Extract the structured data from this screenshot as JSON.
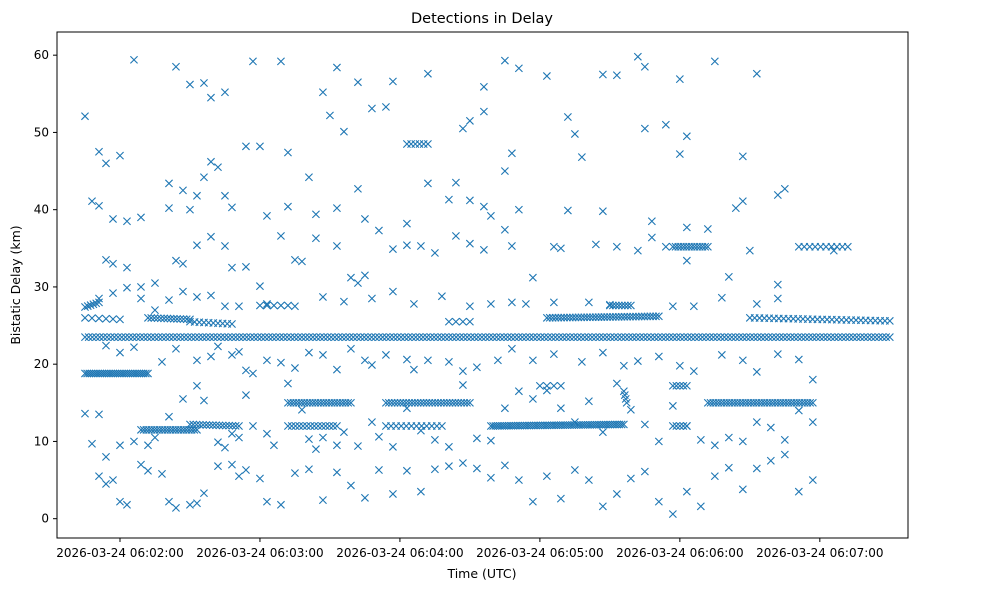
{
  "chart_data": {
    "type": "scatter",
    "title": "Detections in Delay",
    "xlabel": "Time (UTC)",
    "ylabel": "Bistatic Delay (km)",
    "marker": "x",
    "color": "#1f77b4",
    "xlim": [
      -0.45,
      5.63
    ],
    "ylim": [
      -2.5,
      63
    ],
    "x_unit": "minutes after 2026-03-24 06:02:00",
    "x_ticks": [
      {
        "value": 0,
        "label": "2026-03-24 06:02:00"
      },
      {
        "value": 1,
        "label": "2026-03-24 06:03:00"
      },
      {
        "value": 2,
        "label": "2026-03-24 06:04:00"
      },
      {
        "value": 3,
        "label": "2026-03-24 06:05:00"
      },
      {
        "value": 4,
        "label": "2026-03-24 06:06:00"
      },
      {
        "value": 5,
        "label": "2026-03-24 06:07:00"
      }
    ],
    "y_ticks": [
      {
        "value": 0,
        "label": "0"
      },
      {
        "value": 10,
        "label": "10"
      },
      {
        "value": 20,
        "label": "20"
      },
      {
        "value": 30,
        "label": "30"
      },
      {
        "value": 40,
        "label": "40"
      },
      {
        "value": 50,
        "label": "50"
      },
      {
        "value": 60,
        "label": "60"
      }
    ],
    "tracks": [
      {
        "x_start": -0.25,
        "x_end": 5.5,
        "y_start": 23.5,
        "y_end": 23.5,
        "count": 220
      },
      {
        "x_start": -0.25,
        "x_end": 0.2,
        "y_start": 18.8,
        "y_end": 18.8,
        "count": 30
      },
      {
        "x_start": -0.25,
        "x_end": -0.15,
        "y_start": 27.4,
        "y_end": 28.0,
        "count": 6
      },
      {
        "x_start": -0.25,
        "x_end": 0.0,
        "y_start": 26.0,
        "y_end": 25.8,
        "count": 6
      },
      {
        "x_start": 0.2,
        "x_end": 0.5,
        "y_start": 26.0,
        "y_end": 25.8,
        "count": 14
      },
      {
        "x_start": 0.5,
        "x_end": 0.8,
        "y_start": 25.5,
        "y_end": 25.2,
        "count": 10
      },
      {
        "x_start": 1.0,
        "x_end": 1.2,
        "y_start": 27.6,
        "y_end": 27.6,
        "count": 5
      },
      {
        "x_start": 0.15,
        "x_end": 0.55,
        "y_start": 11.5,
        "y_end": 11.5,
        "count": 22
      },
      {
        "x_start": 0.5,
        "x_end": 0.85,
        "y_start": 12.2,
        "y_end": 12.0,
        "count": 16
      },
      {
        "x_start": 1.2,
        "x_end": 1.65,
        "y_start": 15.0,
        "y_end": 15.0,
        "count": 24
      },
      {
        "x_start": 1.2,
        "x_end": 1.55,
        "y_start": 12.0,
        "y_end": 12.0,
        "count": 14
      },
      {
        "x_start": 1.9,
        "x_end": 2.5,
        "y_start": 15.0,
        "y_end": 15.0,
        "count": 30
      },
      {
        "x_start": 1.9,
        "x_end": 2.3,
        "y_start": 12.0,
        "y_end": 12.0,
        "count": 12
      },
      {
        "x_start": 2.05,
        "x_end": 2.2,
        "y_start": 48.5,
        "y_end": 48.5,
        "count": 6
      },
      {
        "x_start": 2.65,
        "x_end": 3.6,
        "y_start": 12.0,
        "y_end": 12.2,
        "count": 60
      },
      {
        "x_start": 3.05,
        "x_end": 3.85,
        "y_start": 26.0,
        "y_end": 26.2,
        "count": 40
      },
      {
        "x_start": 3.5,
        "x_end": 3.65,
        "y_start": 27.6,
        "y_end": 27.6,
        "count": 8
      },
      {
        "x_start": 3.6,
        "x_end": 3.62,
        "y_start": 16.5,
        "y_end": 15.0,
        "count": 4
      },
      {
        "x_start": 3.95,
        "x_end": 4.2,
        "y_start": 35.2,
        "y_end": 35.2,
        "count": 14
      },
      {
        "x_start": 4.2,
        "x_end": 4.95,
        "y_start": 15.0,
        "y_end": 15.0,
        "count": 40
      },
      {
        "x_start": 4.85,
        "x_end": 5.2,
        "y_start": 35.2,
        "y_end": 35.2,
        "count": 10
      },
      {
        "x_start": 4.5,
        "x_end": 5.5,
        "y_start": 26.0,
        "y_end": 25.6,
        "count": 30
      },
      {
        "x_start": 3.95,
        "x_end": 4.05,
        "y_start": 17.2,
        "y_end": 17.2,
        "count": 5
      },
      {
        "x_start": 3.95,
        "x_end": 4.05,
        "y_start": 12.0,
        "y_end": 12.0,
        "count": 5
      },
      {
        "x_start": 2.35,
        "x_end": 2.5,
        "y_start": 25.5,
        "y_end": 25.5,
        "count": 4
      },
      {
        "x_start": 3.0,
        "x_end": 3.15,
        "y_start": 17.2,
        "y_end": 17.2,
        "count": 4
      }
    ],
    "points": [
      [
        -0.25,
        52.1
      ],
      [
        0.1,
        59.4
      ],
      [
        0.4,
        58.5
      ],
      [
        0.5,
        56.2
      ],
      [
        0.6,
        56.4
      ],
      [
        0.65,
        54.5
      ],
      [
        0.75,
        55.2
      ],
      [
        0.95,
        59.2
      ],
      [
        1.15,
        59.2
      ],
      [
        1.55,
        58.4
      ],
      [
        1.7,
        56.5
      ],
      [
        1.95,
        56.6
      ],
      [
        2.2,
        57.6
      ],
      [
        2.6,
        55.9
      ],
      [
        2.75,
        59.3
      ],
      [
        2.85,
        58.3
      ],
      [
        3.05,
        57.3
      ],
      [
        3.45,
        57.5
      ],
      [
        3.55,
        57.4
      ],
      [
        3.7,
        59.8
      ],
      [
        3.75,
        58.5
      ],
      [
        4.25,
        59.2
      ],
      [
        4.55,
        57.6
      ],
      [
        4.0,
        56.9
      ],
      [
        -0.15,
        47.5
      ],
      [
        -0.1,
        46
      ],
      [
        0.0,
        47
      ],
      [
        0.35,
        43.4
      ],
      [
        0.45,
        42.5
      ],
      [
        0.55,
        41.8
      ],
      [
        0.6,
        44.2
      ],
      [
        0.65,
        46.2
      ],
      [
        0.7,
        45.5
      ],
      [
        0.9,
        48.2
      ],
      [
        1.0,
        48.2
      ],
      [
        1.2,
        47.4
      ],
      [
        1.35,
        44.2
      ],
      [
        1.45,
        55.2
      ],
      [
        1.5,
        52.2
      ],
      [
        1.6,
        50.1
      ],
      [
        1.7,
        42.7
      ],
      [
        1.8,
        53.1
      ],
      [
        1.9,
        53.3
      ],
      [
        2.2,
        43.4
      ],
      [
        2.35,
        41.3
      ],
      [
        2.45,
        50.5
      ],
      [
        2.5,
        51.5
      ],
      [
        2.6,
        52.7
      ],
      [
        2.75,
        45
      ],
      [
        2.8,
        47.3
      ],
      [
        3.2,
        52
      ],
      [
        3.25,
        49.8
      ],
      [
        3.3,
        46.8
      ],
      [
        3.75,
        50.5
      ],
      [
        3.9,
        51
      ],
      [
        4.05,
        49.5
      ],
      [
        4.0,
        47.2
      ],
      [
        4.45,
        46.9
      ],
      [
        4.75,
        42.7
      ],
      [
        -0.2,
        41.1
      ],
      [
        -0.15,
        40.5
      ],
      [
        -0.05,
        38.8
      ],
      [
        0.05,
        38.5
      ],
      [
        0.15,
        39
      ],
      [
        0.35,
        40.2
      ],
      [
        0.5,
        40
      ],
      [
        0.75,
        41.8
      ],
      [
        0.8,
        40.3
      ],
      [
        1.05,
        39.2
      ],
      [
        1.2,
        40.4
      ],
      [
        1.4,
        39.4
      ],
      [
        1.55,
        40.2
      ],
      [
        1.75,
        38.8
      ],
      [
        2.05,
        38.2
      ],
      [
        2.4,
        43.5
      ],
      [
        2.5,
        41.2
      ],
      [
        2.6,
        40.4
      ],
      [
        2.65,
        39.2
      ],
      [
        2.85,
        40
      ],
      [
        3.2,
        39.9
      ],
      [
        3.45,
        39.8
      ],
      [
        3.8,
        38.5
      ],
      [
        4.05,
        37.7
      ],
      [
        4.2,
        37.5
      ],
      [
        4.4,
        40.2
      ],
      [
        4.45,
        41.1
      ],
      [
        4.7,
        41.9
      ],
      [
        -0.1,
        33.5
      ],
      [
        -0.05,
        33
      ],
      [
        0.05,
        32.5
      ],
      [
        0.15,
        30
      ],
      [
        0.25,
        30.5
      ],
      [
        0.4,
        33.4
      ],
      [
        0.45,
        33
      ],
      [
        0.55,
        35.4
      ],
      [
        0.65,
        36.5
      ],
      [
        0.75,
        35.3
      ],
      [
        0.8,
        32.5
      ],
      [
        0.9,
        32.6
      ],
      [
        1.0,
        30.1
      ],
      [
        1.15,
        36.6
      ],
      [
        1.25,
        33.5
      ],
      [
        1.3,
        33.3
      ],
      [
        1.4,
        36.3
      ],
      [
        1.55,
        35.3
      ],
      [
        1.65,
        31.2
      ],
      [
        1.75,
        31.5
      ],
      [
        1.85,
        37.3
      ],
      [
        1.95,
        34.9
      ],
      [
        2.05,
        35.4
      ],
      [
        2.15,
        35.3
      ],
      [
        2.25,
        34.4
      ],
      [
        2.4,
        36.6
      ],
      [
        2.5,
        35.6
      ],
      [
        2.6,
        34.8
      ],
      [
        2.75,
        37.4
      ],
      [
        2.8,
        35.3
      ],
      [
        2.95,
        31.2
      ],
      [
        3.1,
        35.2
      ],
      [
        3.15,
        35
      ],
      [
        3.4,
        35.5
      ],
      [
        3.55,
        35.2
      ],
      [
        3.7,
        34.7
      ],
      [
        3.8,
        36.4
      ],
      [
        3.9,
        35.2
      ],
      [
        4.05,
        33.4
      ],
      [
        4.35,
        31.3
      ],
      [
        4.5,
        34.7
      ],
      [
        4.7,
        30.3
      ],
      [
        5.1,
        34.7
      ],
      [
        -0.15,
        28.5
      ],
      [
        -0.05,
        29.2
      ],
      [
        0.05,
        29.9
      ],
      [
        0.15,
        28.5
      ],
      [
        0.25,
        27
      ],
      [
        0.35,
        28.3
      ],
      [
        0.45,
        29.4
      ],
      [
        0.55,
        28.7
      ],
      [
        0.65,
        28.9
      ],
      [
        0.75,
        27.5
      ],
      [
        0.85,
        27.5
      ],
      [
        1.05,
        27.8
      ],
      [
        1.25,
        27.5
      ],
      [
        1.45,
        28.7
      ],
      [
        1.6,
        28.1
      ],
      [
        1.7,
        30.5
      ],
      [
        1.8,
        28.5
      ],
      [
        1.95,
        29.4
      ],
      [
        2.1,
        27.8
      ],
      [
        2.3,
        28.8
      ],
      [
        2.5,
        27.5
      ],
      [
        2.65,
        27.8
      ],
      [
        2.8,
        28
      ],
      [
        2.9,
        27.8
      ],
      [
        3.1,
        28
      ],
      [
        3.35,
        28
      ],
      [
        3.5,
        27.7
      ],
      [
        3.95,
        27.5
      ],
      [
        4.1,
        27.5
      ],
      [
        4.3,
        28.6
      ],
      [
        4.55,
        27.8
      ],
      [
        4.7,
        28.5
      ],
      [
        -0.1,
        22.4
      ],
      [
        0.0,
        21.5
      ],
      [
        0.1,
        22.2
      ],
      [
        0.3,
        20.3
      ],
      [
        0.4,
        22
      ],
      [
        0.55,
        20.5
      ],
      [
        0.65,
        21
      ],
      [
        0.7,
        22.3
      ],
      [
        0.8,
        21.2
      ],
      [
        0.85,
        21.6
      ],
      [
        0.9,
        19.2
      ],
      [
        0.95,
        18.8
      ],
      [
        1.05,
        20.5
      ],
      [
        1.15,
        20.2
      ],
      [
        1.25,
        19.5
      ],
      [
        1.35,
        21.5
      ],
      [
        1.45,
        21.2
      ],
      [
        1.55,
        19.3
      ],
      [
        1.65,
        22
      ],
      [
        1.75,
        20.5
      ],
      [
        1.8,
        19.9
      ],
      [
        1.9,
        21.2
      ],
      [
        2.05,
        20.6
      ],
      [
        2.1,
        19.3
      ],
      [
        2.2,
        20.5
      ],
      [
        2.35,
        20.3
      ],
      [
        2.45,
        19.1
      ],
      [
        2.55,
        19.6
      ],
      [
        2.7,
        20.5
      ],
      [
        2.8,
        22
      ],
      [
        2.95,
        20.5
      ],
      [
        3.1,
        21.3
      ],
      [
        3.3,
        20.3
      ],
      [
        3.45,
        21.5
      ],
      [
        3.6,
        19.8
      ],
      [
        3.7,
        20.4
      ],
      [
        3.85,
        21
      ],
      [
        4.0,
        19.8
      ],
      [
        4.1,
        19.1
      ],
      [
        4.3,
        21.2
      ],
      [
        4.45,
        20.5
      ],
      [
        4.55,
        19
      ],
      [
        4.7,
        21.3
      ],
      [
        4.85,
        20.6
      ],
      [
        4.95,
        18
      ],
      [
        -0.25,
        13.6
      ],
      [
        -0.15,
        13.5
      ],
      [
        -0.2,
        9.7
      ],
      [
        -0.1,
        8
      ],
      [
        0.0,
        9.5
      ],
      [
        0.1,
        10
      ],
      [
        0.2,
        9.5
      ],
      [
        0.25,
        10.5
      ],
      [
        0.35,
        13.2
      ],
      [
        0.45,
        15.5
      ],
      [
        0.55,
        17.2
      ],
      [
        0.6,
        15.3
      ],
      [
        0.7,
        9.9
      ],
      [
        0.75,
        9.2
      ],
      [
        0.8,
        11
      ],
      [
        0.85,
        10.5
      ],
      [
        0.9,
        16
      ],
      [
        0.95,
        12
      ],
      [
        1.05,
        11
      ],
      [
        1.1,
        9.5
      ],
      [
        1.2,
        17.5
      ],
      [
        1.3,
        14.1
      ],
      [
        1.35,
        10.3
      ],
      [
        1.4,
        9
      ],
      [
        1.45,
        10.5
      ],
      [
        1.55,
        9.5
      ],
      [
        1.6,
        11.2
      ],
      [
        1.7,
        9.4
      ],
      [
        1.8,
        12.5
      ],
      [
        1.85,
        10.6
      ],
      [
        1.95,
        9.3
      ],
      [
        2.05,
        14.3
      ],
      [
        2.15,
        11.4
      ],
      [
        2.25,
        10.2
      ],
      [
        2.35,
        9.3
      ],
      [
        2.45,
        17.3
      ],
      [
        2.55,
        10.4
      ],
      [
        2.65,
        10.1
      ],
      [
        2.75,
        14.3
      ],
      [
        2.85,
        16.5
      ],
      [
        2.95,
        15.5
      ],
      [
        3.05,
        16.6
      ],
      [
        3.15,
        14.3
      ],
      [
        3.25,
        12.5
      ],
      [
        3.35,
        15.2
      ],
      [
        3.45,
        11.2
      ],
      [
        3.55,
        17.5
      ],
      [
        3.65,
        14.1
      ],
      [
        3.75,
        12.2
      ],
      [
        3.85,
        10
      ],
      [
        3.95,
        14.6
      ],
      [
        4.05,
        12
      ],
      [
        4.15,
        10.2
      ],
      [
        4.25,
        9.5
      ],
      [
        4.35,
        10.5
      ],
      [
        4.45,
        10
      ],
      [
        4.55,
        12.5
      ],
      [
        4.65,
        11.8
      ],
      [
        4.75,
        10.2
      ],
      [
        4.85,
        14
      ],
      [
        4.95,
        12.5
      ],
      [
        -0.15,
        5.5
      ],
      [
        -0.1,
        4.5
      ],
      [
        -0.05,
        5
      ],
      [
        0.0,
        2.2
      ],
      [
        0.05,
        1.8
      ],
      [
        0.15,
        7
      ],
      [
        0.2,
        6.2
      ],
      [
        0.3,
        5.8
      ],
      [
        0.35,
        2.2
      ],
      [
        0.4,
        1.4
      ],
      [
        0.5,
        1.8
      ],
      [
        0.55,
        2
      ],
      [
        0.6,
        3.3
      ],
      [
        0.7,
        6.8
      ],
      [
        0.8,
        7
      ],
      [
        0.85,
        5.5
      ],
      [
        0.9,
        6.3
      ],
      [
        1.0,
        5.2
      ],
      [
        1.05,
        2.2
      ],
      [
        1.15,
        1.8
      ],
      [
        1.25,
        5.9
      ],
      [
        1.35,
        6.4
      ],
      [
        1.45,
        2.4
      ],
      [
        1.55,
        6
      ],
      [
        1.65,
        4.3
      ],
      [
        1.75,
        2.7
      ],
      [
        1.85,
        6.3
      ],
      [
        1.95,
        3.2
      ],
      [
        2.05,
        6.2
      ],
      [
        2.15,
        3.5
      ],
      [
        2.25,
        6.4
      ],
      [
        2.35,
        6.8
      ],
      [
        2.45,
        7.2
      ],
      [
        2.55,
        6.5
      ],
      [
        2.65,
        5.3
      ],
      [
        2.75,
        6.9
      ],
      [
        2.85,
        5
      ],
      [
        2.95,
        2.2
      ],
      [
        3.05,
        5.5
      ],
      [
        3.15,
        2.6
      ],
      [
        3.25,
        6.3
      ],
      [
        3.35,
        5
      ],
      [
        3.45,
        1.6
      ],
      [
        3.55,
        3.2
      ],
      [
        3.65,
        5.2
      ],
      [
        3.75,
        6.1
      ],
      [
        3.85,
        2.2
      ],
      [
        3.95,
        0.6
      ],
      [
        4.05,
        3.5
      ],
      [
        4.15,
        1.6
      ],
      [
        4.25,
        5.5
      ],
      [
        4.35,
        6.6
      ],
      [
        4.45,
        3.8
      ],
      [
        4.55,
        6.5
      ],
      [
        4.65,
        7.5
      ],
      [
        4.75,
        8.3
      ],
      [
        4.85,
        3.5
      ],
      [
        4.95,
        5
      ]
    ]
  }
}
